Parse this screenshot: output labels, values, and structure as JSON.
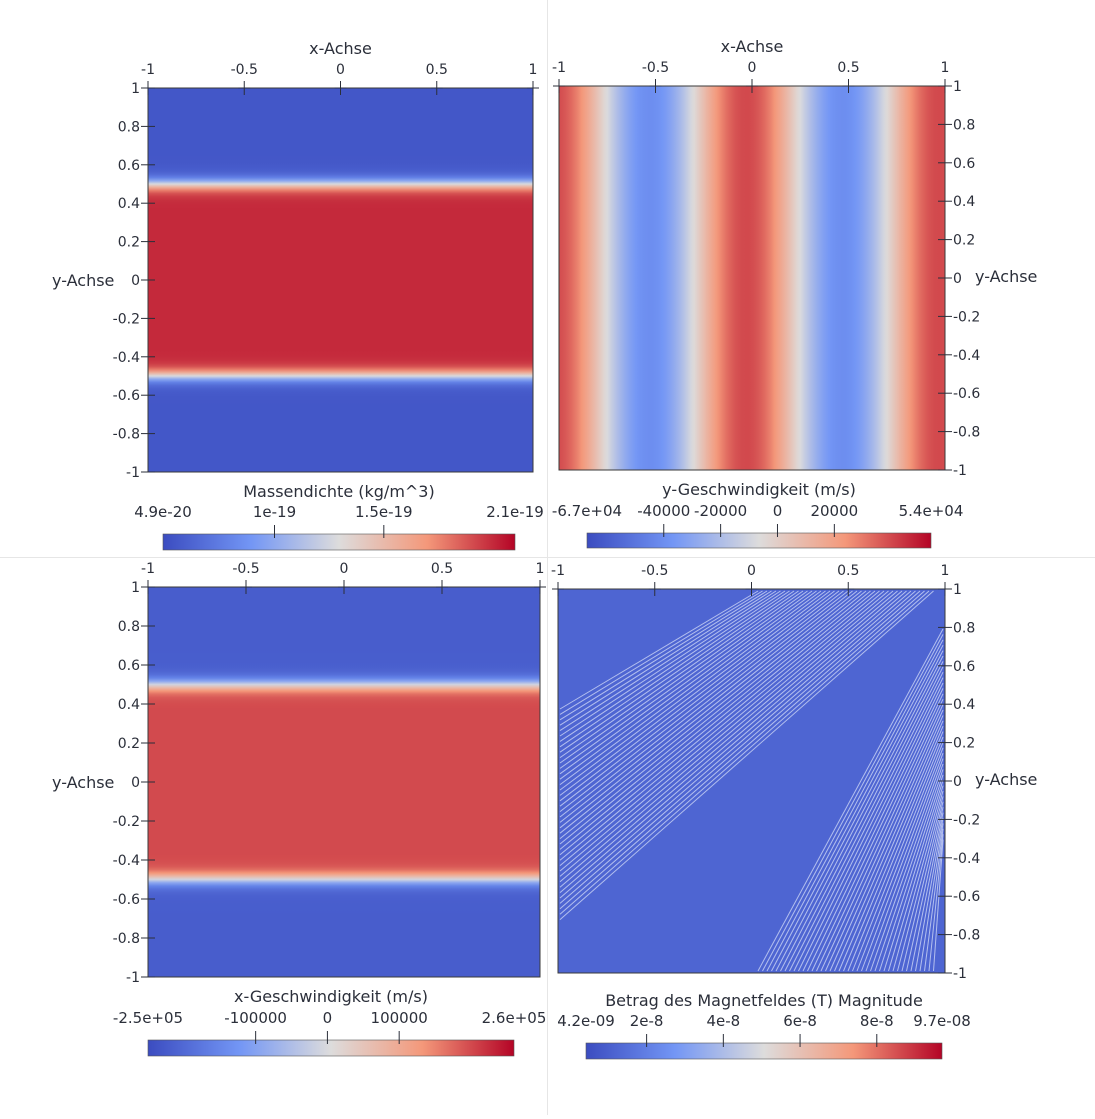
{
  "charts": [
    {
      "id": "massendichte",
      "type": "heatmap",
      "x_axis": {
        "label": "x-Achse",
        "ticks": [
          "-1",
          "-0.5",
          "0",
          "0.5",
          "1"
        ]
      },
      "y_axis": {
        "label": "y-Achse",
        "ticks": [
          "1",
          "0.8",
          "0.6",
          "0.4",
          "0.2",
          "0",
          "-0.2",
          "-0.4",
          "-0.6",
          "-0.8",
          "-1"
        ]
      },
      "colorbar": {
        "title": "Massendichte (kg/m^3)",
        "min": 4.9e-20,
        "max": 2.1e-19,
        "ticks": [
          {
            "value": 4.9e-20,
            "label": "4.9e-20"
          },
          {
            "value": 1e-19,
            "label": "1e-19"
          },
          {
            "value": 1.5e-19,
            "label": "1.5e-19"
          },
          {
            "value": 2.1e-19,
            "label": "2.1e-19"
          }
        ]
      },
      "field": {
        "kind": "band_y",
        "outside_value": 5.5e-20,
        "inside_value": 2e-19,
        "edge": 0.5,
        "width": 0.04
      }
    },
    {
      "id": "y-geschwindigkeit",
      "type": "heatmap",
      "x_axis": {
        "label": "x-Achse",
        "ticks": [
          "-1",
          "-0.5",
          "0",
          "0.5",
          "1"
        ]
      },
      "y_axis": {
        "label": "y-Achse",
        "ticks": [
          "1",
          "0.8",
          "0.6",
          "0.4",
          "0.2",
          "0",
          "-0.2",
          "-0.4",
          "-0.6",
          "-0.8",
          "-1"
        ]
      },
      "colorbar": {
        "title": "y-Geschwindigkeit (m/s)",
        "min": -67000,
        "max": 54000,
        "ticks": [
          {
            "value": -67000,
            "label": "-6.7e+04"
          },
          {
            "value": -40000,
            "label": "-40000"
          },
          {
            "value": -20000,
            "label": "-20000"
          },
          {
            "value": 0,
            "label": "0"
          },
          {
            "value": 20000,
            "label": "20000"
          },
          {
            "value": 54000,
            "label": "5.4e+04"
          }
        ]
      },
      "field": {
        "kind": "sin_x",
        "amplitude": 40000,
        "offset": 0,
        "periods": 2,
        "phase": 0.78
      }
    },
    {
      "id": "x-geschwindigkeit",
      "type": "heatmap",
      "x_axis": {
        "label": "",
        "ticks": [
          "-1",
          "-0.5",
          "0",
          "0.5",
          "1"
        ]
      },
      "y_axis": {
        "label": "y-Achse",
        "ticks": [
          "1",
          "0.8",
          "0.6",
          "0.4",
          "0.2",
          "0",
          "-0.2",
          "-0.4",
          "-0.6",
          "-0.8",
          "-1"
        ]
      },
      "colorbar": {
        "title": "x-Geschwindigkeit (m/s)",
        "min": -250000,
        "max": 260000,
        "ticks": [
          {
            "value": -250000,
            "label": "-2.5e+05"
          },
          {
            "value": -100000,
            "label": "-100000"
          },
          {
            "value": 0,
            "label": "0"
          },
          {
            "value": 100000,
            "label": "100000"
          },
          {
            "value": 260000,
            "label": "2.6e+05"
          }
        ]
      },
      "field": {
        "kind": "band_y",
        "outside_value": -220000,
        "inside_value": 200000,
        "edge": 0.5,
        "width": 0.04
      }
    },
    {
      "id": "magnetfeld",
      "type": "heatmap",
      "x_axis": {
        "label": "",
        "ticks": [
          "-1",
          "-0.5",
          "0",
          "0.5",
          "1"
        ]
      },
      "y_axis": {
        "label": "y-Achse",
        "ticks": [
          "1",
          "0.8",
          "0.6",
          "0.4",
          "0.2",
          "0",
          "-0.2",
          "-0.4",
          "-0.6",
          "-0.8",
          "-1"
        ]
      },
      "colorbar": {
        "title": "Betrag des Magnetfeldes (T) Magnitude",
        "min": 4.2e-09,
        "max": 9.7e-08,
        "ticks": [
          {
            "value": 4.2e-09,
            "label": "4.2e-09"
          },
          {
            "value": 2e-08,
            "label": "2e-8"
          },
          {
            "value": 4e-08,
            "label": "4e-8"
          },
          {
            "value": 6e-08,
            "label": "6e-8"
          },
          {
            "value": 8e-08,
            "label": "8e-8"
          },
          {
            "value": 9.7e-08,
            "label": "9.7e-08"
          }
        ]
      },
      "field": {
        "kind": "uniform",
        "value": 1.2e-08
      }
    }
  ],
  "colormap": {
    "name": "Cool to Warm",
    "stops": [
      "#3b4cc0",
      "#7396f5",
      "#dddcdc",
      "#f4987a",
      "#b40426"
    ]
  },
  "chart_data": [
    {
      "type": "heatmap",
      "title": "Massendichte (kg/m^3)",
      "xlabel": "x-Achse",
      "ylabel": "y-Achse",
      "xlim": [
        -1,
        1
      ],
      "ylim": [
        -1,
        1
      ],
      "value_range": [
        4.9e-20,
        2.1e-19
      ],
      "description_values": {
        "band_y_range": [
          -0.5,
          0.5
        ],
        "inside_value": 2e-19,
        "outside_value": 5.5e-20
      }
    },
    {
      "type": "heatmap",
      "title": "y-Geschwindigkeit (m/s)",
      "xlabel": "x-Achse",
      "ylabel": "y-Achse",
      "xlim": [
        -1,
        1
      ],
      "ylim": [
        -1,
        1
      ],
      "value_range": [
        -67000,
        54000
      ],
      "description_values": {
        "peaks_x": [
          -0.75,
          0.25
        ],
        "troughs_x": [
          -0.25,
          0.75
        ],
        "amplitude": 40000
      }
    },
    {
      "type": "heatmap",
      "title": "x-Geschwindigkeit (m/s)",
      "xlabel": "",
      "ylabel": "y-Achse",
      "xlim": [
        -1,
        1
      ],
      "ylim": [
        -1,
        1
      ],
      "value_range": [
        -250000,
        260000
      ],
      "description_values": {
        "band_y_range": [
          -0.5,
          0.5
        ],
        "inside_value": 200000,
        "outside_value": -220000
      }
    },
    {
      "type": "heatmap",
      "title": "Betrag des Magnetfeldes (T) Magnitude",
      "xlabel": "",
      "ylabel": "y-Achse",
      "xlim": [
        -1,
        1
      ],
      "ylim": [
        -1,
        1
      ],
      "value_range": [
        4.2e-09,
        9.7e-08
      ],
      "description_values": {
        "uniform_value": 1.2e-08
      }
    }
  ]
}
